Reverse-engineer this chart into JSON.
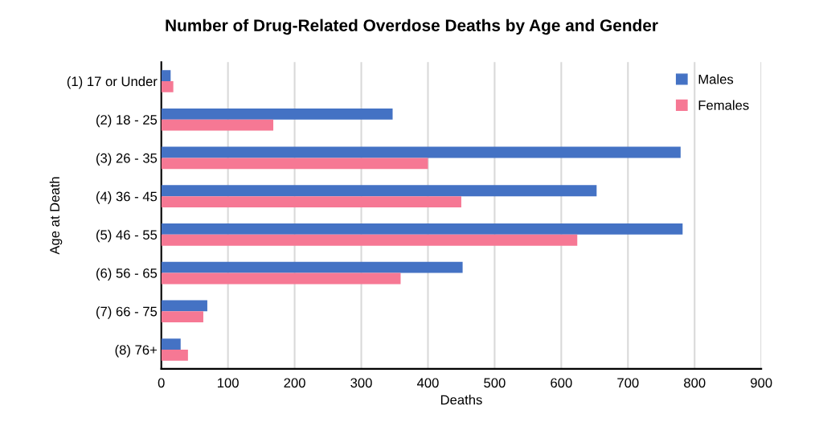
{
  "chart_data": {
    "type": "bar",
    "orientation": "horizontal",
    "title": "Number of Drug-Related Overdose Deaths by Age and Gender",
    "xlabel": "Deaths",
    "ylabel": "Age at Death",
    "categories": [
      "(1) 17 or Under",
      "(2) 18 - 25",
      "(3) 26 - 35",
      "(4) 36 - 45",
      "(5) 46 - 55",
      "(6) 56 - 65",
      "(7) 66 - 75",
      "(8) 76+"
    ],
    "series": [
      {
        "name": "Males",
        "color": "#4472c4",
        "values": [
          14,
          347,
          779,
          653,
          782,
          452,
          69,
          29
        ]
      },
      {
        "name": "Females",
        "color": "#f67894",
        "values": [
          18,
          168,
          400,
          450,
          624,
          359,
          63,
          40
        ]
      }
    ],
    "xlim": [
      0,
      900
    ],
    "xticks": [
      0,
      100,
      200,
      300,
      400,
      500,
      600,
      700,
      800,
      900
    ],
    "grid": "x",
    "legend": "top right"
  }
}
